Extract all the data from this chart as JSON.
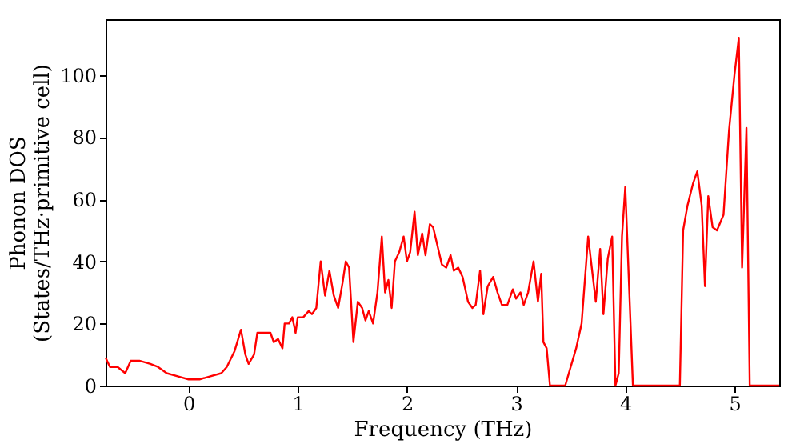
{
  "chart_data": {
    "type": "line",
    "xlabel": "Frequency (THz)",
    "ylabel": "Phonon DOS\n(States/THz·primitive cell)",
    "xlim": [
      -0.76,
      5.41
    ],
    "ylim": [
      0,
      118
    ],
    "xticks": [
      0,
      1,
      2,
      3,
      4,
      5
    ],
    "yticks": [
      0,
      20,
      40,
      60,
      80,
      100
    ],
    "grid": false,
    "series": [
      {
        "color": "#ff0000",
        "x": [
          -0.76,
          -0.72,
          -0.65,
          -0.58,
          -0.53,
          -0.45,
          -0.35,
          -0.28,
          -0.2,
          -0.1,
          0,
          0.1,
          0.2,
          0.3,
          0.35,
          0.42,
          0.48,
          0.52,
          0.55,
          0.6,
          0.63,
          0.7,
          0.75,
          0.78,
          0.82,
          0.86,
          0.88,
          0.92,
          0.95,
          0.98,
          1.0,
          1.05,
          1.1,
          1.13,
          1.17,
          1.21,
          1.25,
          1.29,
          1.33,
          1.37,
          1.41,
          1.44,
          1.47,
          1.51,
          1.55,
          1.59,
          1.62,
          1.65,
          1.69,
          1.73,
          1.77,
          1.8,
          1.83,
          1.86,
          1.89,
          1.93,
          1.97,
          2.0,
          2.03,
          2.07,
          2.1,
          2.14,
          2.17,
          2.21,
          2.24,
          2.28,
          2.32,
          2.36,
          2.4,
          2.43,
          2.47,
          2.51,
          2.56,
          2.6,
          2.63,
          2.67,
          2.7,
          2.74,
          2.79,
          2.83,
          2.87,
          2.92,
          2.97,
          3.0,
          3.04,
          3.07,
          3.11,
          3.16,
          3.2,
          3.23,
          3.25,
          3.28,
          3.31,
          3.45,
          3.5,
          3.55,
          3.6,
          3.66,
          3.7,
          3.73,
          3.77,
          3.8,
          3.84,
          3.88,
          3.91,
          3.94,
          3.97,
          4.0,
          4.07,
          4.5,
          4.53,
          4.57,
          4.62,
          4.66,
          4.7,
          4.73,
          4.76,
          4.8,
          4.84,
          4.9,
          4.95,
          5.0,
          5.04,
          5.07,
          5.11,
          5.14,
          5.41
        ],
        "values": [
          9,
          6,
          6,
          4,
          8,
          8,
          7,
          6,
          4,
          3,
          2,
          2,
          3,
          4,
          6,
          11,
          18,
          10,
          7,
          10,
          17,
          17,
          17,
          14,
          15,
          12,
          20,
          20,
          22,
          17,
          22,
          22,
          24,
          23,
          25,
          40,
          29,
          37,
          29,
          25,
          33,
          40,
          38,
          14,
          27,
          25,
          21,
          24,
          20,
          30,
          48,
          30,
          34,
          25,
          40,
          43,
          48,
          40,
          43,
          56,
          42,
          49,
          42,
          52,
          51,
          45,
          39,
          38,
          42,
          37,
          38,
          35,
          27,
          25,
          26,
          37,
          23,
          32,
          35,
          30,
          26,
          26,
          31,
          28,
          30,
          26,
          30,
          40,
          27,
          36,
          14,
          12,
          0,
          0,
          6,
          12,
          20,
          48,
          36,
          27,
          44,
          23,
          41,
          48,
          0,
          4,
          48,
          64,
          0,
          0,
          50,
          58,
          65,
          69,
          58,
          32,
          61,
          51,
          50,
          55,
          82,
          100,
          112,
          38,
          83,
          0,
          0
        ]
      }
    ]
  }
}
